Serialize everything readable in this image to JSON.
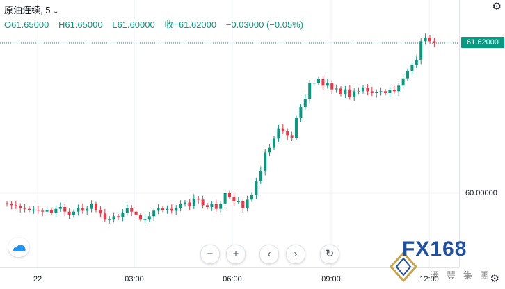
{
  "legend": {
    "symbol": "原油连续",
    "interval": "5",
    "open": "O61.65000",
    "high": "H61.65000",
    "low": "L61.60000",
    "close": "收=61.62000",
    "change": "−0.03000 (−0.05%)"
  },
  "price_axis": {
    "ticks": [
      "60.00000"
    ],
    "current_price": "61.62000"
  },
  "time_axis": {
    "ticks": [
      "22",
      "03:00",
      "06:00",
      "09:00",
      "12:00"
    ]
  },
  "nav": {
    "zoom_out": "−",
    "zoom_in": "+",
    "scroll_left": "‹",
    "scroll_right": "›",
    "reset": "↻"
  },
  "icons": {
    "gear": "gear-icon",
    "chevron": "chevron-down-icon",
    "tradingview_logo": "cloud-logo-icon"
  },
  "watermark": {
    "brand": "FX168",
    "sub": "滙豐集團"
  },
  "colors": {
    "up": "#089981",
    "down": "#f23645",
    "grid": "#f0f3fa",
    "price_line": "#089981"
  },
  "chart_data": {
    "type": "candlestick",
    "interval_minutes": 5,
    "price_reference": 61.62,
    "ylim": [
      59.85,
      61.95
    ],
    "close_series": [
      59.88,
      59.87,
      59.86,
      59.84,
      59.83,
      59.82,
      59.82,
      59.81,
      59.8,
      59.82,
      59.79,
      59.83,
      59.85,
      59.8,
      59.76,
      59.8,
      59.84,
      59.81,
      59.83,
      59.88,
      59.82,
      59.78,
      59.72,
      59.72,
      59.75,
      59.74,
      59.79,
      59.84,
      59.8,
      59.76,
      59.72,
      59.72,
      59.75,
      59.81,
      59.84,
      59.82,
      59.83,
      59.81,
      59.84,
      59.88,
      59.9,
      59.86,
      59.94,
      59.93,
      59.87,
      59.85,
      59.88,
      59.83,
      59.88,
      60.0,
      59.96,
      59.91,
      59.91,
      59.84,
      59.93,
      59.98,
      60.13,
      60.24,
      60.44,
      60.49,
      60.59,
      60.7,
      60.67,
      60.62,
      60.6,
      60.81,
      60.93,
      61.02,
      61.19,
      61.19,
      61.23,
      61.16,
      61.19,
      61.12,
      61.13,
      61.07,
      61.12,
      61.04,
      61.1,
      61.1,
      61.14,
      61.1,
      61.08,
      61.09,
      61.1,
      61.08,
      61.11,
      61.1,
      61.16,
      61.24,
      61.32,
      61.38,
      61.44,
      61.64,
      61.68,
      61.64,
      61.62
    ]
  }
}
